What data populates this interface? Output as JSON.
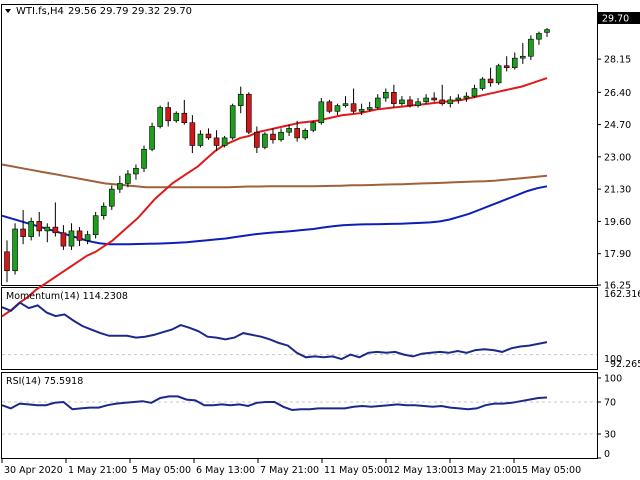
{
  "header": {
    "symbol": "WTI.fs,H4",
    "ohlc": "29.56 29.79 29.32 29.70"
  },
  "colors": {
    "bull": "#1e9e1e",
    "bear": "#d01818",
    "ma_fast": "#e01a1a",
    "ma_slow": "#a0603a",
    "ma_long": "#0d1fb8",
    "osc": "#1b2a8a",
    "grid": "#c8c8c8"
  },
  "chart_data": [
    {
      "type": "candlestick",
      "panel": "price",
      "ylim": [
        16.25,
        31.0
      ],
      "y_ticks": [
        "28.15",
        "26.40",
        "24.70",
        "23.00",
        "21.30",
        "19.60",
        "17.90",
        "16.25"
      ],
      "last_price": "29.70",
      "candles": [
        [
          18.0,
          18.6,
          16.4,
          17.0
        ],
        [
          17.0,
          19.5,
          16.8,
          19.2
        ],
        [
          19.2,
          20.2,
          18.4,
          18.8
        ],
        [
          18.8,
          19.8,
          18.6,
          19.6
        ],
        [
          19.6,
          20.1,
          18.8,
          19.1
        ],
        [
          19.1,
          19.5,
          18.5,
          19.3
        ],
        [
          19.3,
          20.6,
          18.8,
          19.0
        ],
        [
          19.0,
          19.4,
          18.1,
          18.3
        ],
        [
          18.3,
          19.5,
          18.1,
          19.1
        ],
        [
          19.1,
          19.3,
          18.3,
          18.6
        ],
        [
          18.6,
          19.1,
          18.4,
          18.9
        ],
        [
          18.9,
          20.1,
          18.7,
          19.9
        ],
        [
          19.9,
          20.6,
          19.7,
          20.4
        ],
        [
          20.4,
          21.5,
          20.2,
          21.3
        ],
        [
          21.3,
          22.0,
          21.1,
          21.6
        ],
        [
          21.6,
          22.3,
          21.4,
          22.1
        ],
        [
          22.1,
          22.6,
          21.8,
          22.4
        ],
        [
          22.4,
          23.6,
          22.2,
          23.4
        ],
        [
          23.4,
          24.8,
          23.3,
          24.6
        ],
        [
          24.6,
          25.7,
          24.5,
          25.6
        ],
        [
          25.6,
          25.9,
          24.6,
          24.9
        ],
        [
          24.9,
          25.4,
          24.8,
          25.3
        ],
        [
          25.3,
          26.0,
          24.7,
          24.8
        ],
        [
          24.8,
          25.2,
          23.2,
          23.6
        ],
        [
          23.6,
          24.4,
          23.5,
          24.2
        ],
        [
          24.2,
          24.5,
          23.9,
          24.0
        ],
        [
          24.0,
          24.4,
          23.3,
          23.6
        ],
        [
          23.6,
          24.1,
          23.5,
          24.0
        ],
        [
          24.0,
          25.8,
          23.9,
          25.7
        ],
        [
          25.7,
          26.7,
          25.3,
          26.3
        ],
        [
          26.3,
          26.4,
          24.2,
          24.3
        ],
        [
          24.3,
          24.6,
          23.2,
          23.5
        ],
        [
          23.5,
          24.3,
          23.4,
          24.2
        ],
        [
          24.2,
          24.5,
          23.7,
          23.9
        ],
        [
          23.9,
          24.5,
          23.8,
          24.3
        ],
        [
          24.3,
          24.7,
          24.1,
          24.5
        ],
        [
          24.5,
          24.9,
          23.8,
          24.0
        ],
        [
          24.0,
          24.5,
          23.9,
          24.4
        ],
        [
          24.4,
          24.9,
          24.3,
          24.8
        ],
        [
          24.8,
          26.1,
          24.7,
          25.9
        ],
        [
          25.9,
          26.0,
          25.3,
          25.4
        ],
        [
          25.4,
          25.8,
          25.2,
          25.7
        ],
        [
          25.7,
          26.2,
          25.6,
          25.8
        ],
        [
          25.8,
          26.6,
          25.3,
          25.4
        ],
        [
          25.4,
          25.8,
          25.2,
          25.5
        ],
        [
          25.5,
          25.9,
          25.4,
          25.6
        ],
        [
          25.6,
          26.3,
          25.5,
          26.1
        ],
        [
          26.1,
          26.6,
          25.9,
          26.4
        ],
        [
          26.4,
          26.8,
          25.6,
          25.8
        ],
        [
          25.8,
          26.2,
          25.7,
          26.0
        ],
        [
          26.0,
          26.2,
          25.6,
          25.7
        ],
        [
          25.7,
          26.1,
          25.6,
          25.9
        ],
        [
          25.9,
          26.3,
          25.8,
          26.1
        ],
        [
          26.1,
          26.4,
          25.9,
          26.0
        ],
        [
          26.0,
          26.8,
          25.7,
          25.8
        ],
        [
          25.8,
          26.2,
          25.6,
          26.0
        ],
        [
          26.0,
          26.3,
          25.8,
          26.1
        ],
        [
          26.1,
          26.4,
          25.9,
          26.2
        ],
        [
          26.2,
          26.8,
          26.1,
          26.6
        ],
        [
          26.6,
          27.2,
          26.5,
          27.1
        ],
        [
          27.1,
          27.7,
          26.7,
          26.9
        ],
        [
          26.9,
          27.9,
          26.8,
          27.8
        ],
        [
          27.8,
          28.3,
          27.5,
          27.7
        ],
        [
          27.7,
          28.5,
          27.6,
          28.2
        ],
        [
          28.2,
          29.0,
          27.9,
          28.3
        ],
        [
          28.3,
          29.4,
          28.1,
          29.2
        ],
        [
          29.2,
          29.6,
          28.9,
          29.5
        ],
        [
          29.56,
          29.79,
          29.32,
          29.7
        ]
      ],
      "ma_fast": [
        14.6,
        14.9,
        15.3,
        15.6,
        16.0,
        16.3,
        16.6,
        16.9,
        17.2,
        17.5,
        17.8,
        18.0,
        18.3,
        18.6,
        19.0,
        19.4,
        19.8,
        20.3,
        20.8,
        21.2,
        21.6,
        21.9,
        22.2,
        22.5,
        22.9,
        23.3,
        23.6,
        23.8,
        24.0,
        24.1,
        24.3,
        24.4,
        24.5,
        24.6,
        24.7,
        24.8,
        24.85,
        24.9,
        25.0,
        25.1,
        25.2,
        25.25,
        25.3,
        25.4,
        25.5,
        25.55,
        25.6,
        25.65,
        25.7,
        25.75,
        25.8,
        25.85,
        25.9,
        25.95,
        26.0,
        26.1,
        26.2,
        26.3,
        26.4,
        26.5,
        26.6,
        26.7,
        26.85,
        27.0,
        27.15
      ],
      "ma_slow": [
        22.6,
        22.5,
        22.4,
        22.3,
        22.2,
        22.1,
        22.0,
        21.9,
        21.8,
        21.7,
        21.6,
        21.55,
        21.5,
        21.45,
        21.4,
        21.4,
        21.4,
        21.4,
        21.4,
        21.4,
        21.4,
        21.4,
        21.4,
        21.42,
        21.44,
        21.44,
        21.45,
        21.45,
        21.45,
        21.45,
        21.45,
        21.46,
        21.47,
        21.48,
        21.5,
        21.5,
        21.52,
        21.54,
        21.55,
        21.56,
        21.58,
        21.6,
        21.62,
        21.64,
        21.66,
        21.68,
        21.7,
        21.72,
        21.75,
        21.8,
        21.85,
        21.9,
        21.95,
        22.0
      ],
      "ma_long": [
        19.9,
        19.75,
        19.6,
        19.45,
        19.3,
        19.15,
        19.0,
        18.85,
        18.7,
        18.55,
        18.45,
        18.4,
        18.4,
        18.4,
        18.41,
        18.42,
        18.43,
        18.45,
        18.48,
        18.5,
        18.55,
        18.6,
        18.65,
        18.7,
        18.78,
        18.85,
        18.92,
        18.98,
        19.02,
        19.06,
        19.1,
        19.15,
        19.2,
        19.28,
        19.35,
        19.4,
        19.42,
        19.44,
        19.45,
        19.46,
        19.47,
        19.48,
        19.5,
        19.52,
        19.55,
        19.6,
        19.7,
        19.85,
        20.0,
        20.2,
        20.4,
        20.6,
        20.8,
        21.0,
        21.2,
        21.35,
        21.45
      ]
    },
    {
      "type": "line",
      "panel": "momentum",
      "label": "Momentum(14) 114.2308",
      "y_ticks": [
        "162.316",
        "100",
        "92.265"
      ],
      "ylim": [
        85,
        170
      ],
      "values": [
        153,
        149,
        158,
        152,
        155,
        147,
        143,
        145,
        138,
        132,
        128,
        124,
        121,
        121,
        121,
        119,
        120,
        122,
        125,
        128,
        133,
        130,
        126,
        120,
        119,
        117,
        119,
        124,
        122,
        120,
        117,
        113,
        110,
        102,
        97,
        98,
        97,
        98,
        95,
        100,
        97,
        102,
        103,
        102,
        103,
        100,
        98,
        101,
        102,
        103,
        102,
        104,
        102,
        105,
        106,
        105,
        103,
        107,
        109,
        110,
        112,
        114
      ]
    },
    {
      "type": "line",
      "panel": "rsi",
      "label": "RSI(14) 75.5918",
      "y_ticks": [
        "100",
        "70",
        "30",
        "0"
      ],
      "levels": [
        70,
        30
      ],
      "ylim": [
        0,
        100
      ],
      "values": [
        66,
        62,
        68,
        67,
        66,
        66,
        69,
        70,
        61,
        62,
        63,
        63,
        66,
        68,
        69,
        70,
        71,
        69,
        75,
        77,
        77,
        73,
        72,
        66,
        66,
        67,
        66,
        67,
        65,
        69,
        70,
        70,
        64,
        60,
        61,
        61,
        62,
        62,
        62,
        62,
        64,
        65,
        64,
        65,
        66,
        67,
        66,
        66,
        65,
        64,
        65,
        63,
        62,
        61,
        62,
        66,
        68,
        68,
        69,
        71,
        73,
        75,
        75.6
      ]
    }
  ],
  "x_axis": {
    "labels": [
      "30 Apr 2020",
      "1 May 21:00",
      "5 May 05:00",
      "6 May 13:00",
      "7 May 21:00",
      "11 May 05:00",
      "12 May 13:00",
      "13 May 21:00",
      "15 May 05:00"
    ]
  }
}
